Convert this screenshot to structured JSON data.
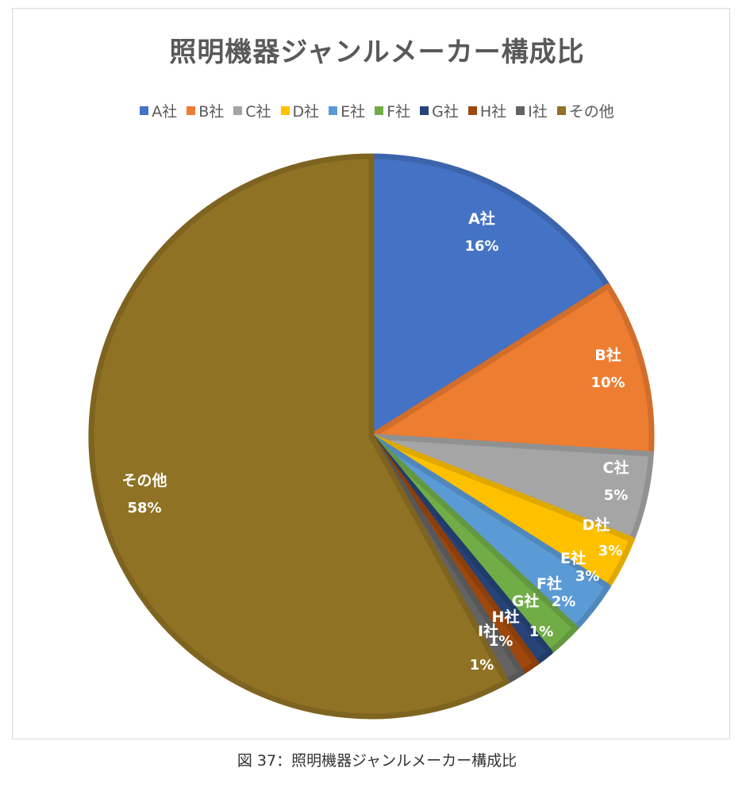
{
  "chart_data": {
    "type": "pie",
    "title": "照明機器ジャンルメーカー構成比",
    "legend_position": "top",
    "start_angle": "12 o'clock, clockwise",
    "categories": [
      "A社",
      "B社",
      "C社",
      "D社",
      "E社",
      "F社",
      "G社",
      "H社",
      "I社",
      "その他"
    ],
    "values": [
      16,
      10,
      5,
      3,
      3,
      2,
      1,
      1,
      1,
      58
    ],
    "data_labels": [
      "16%",
      "10%",
      "5%",
      "3%",
      "3%",
      "2%",
      "1%",
      "1%",
      "1%",
      "58%"
    ],
    "colors": [
      "#4472C4",
      "#ED7D31",
      "#A5A5A5",
      "#FFC000",
      "#5B9BD5",
      "#70AD47",
      "#264478",
      "#9E480E",
      "#636363",
      "#8F7224"
    ]
  },
  "caption": "図 37：照明機器ジャンルメーカー構成比"
}
